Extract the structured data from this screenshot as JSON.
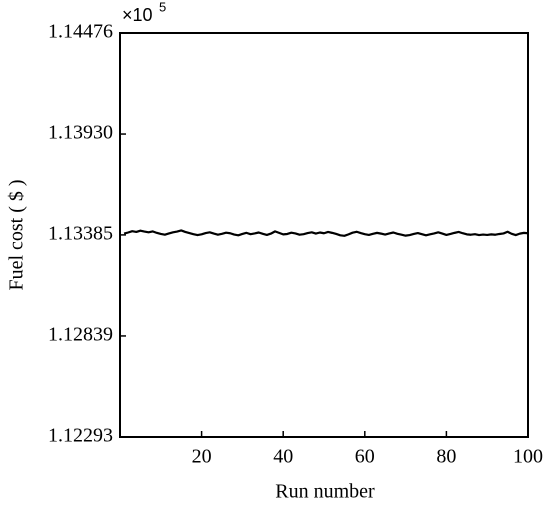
{
  "chart_data": {
    "type": "line",
    "x_label": "Run number",
    "y_label": "Fuel cost ( $ )",
    "multiplier_base": "×10",
    "multiplier_exponent": "5",
    "x": [
      1,
      2,
      3,
      4,
      5,
      6,
      7,
      8,
      9,
      10,
      11,
      12,
      13,
      14,
      15,
      16,
      17,
      18,
      19,
      20,
      21,
      22,
      23,
      24,
      25,
      26,
      27,
      28,
      29,
      30,
      31,
      32,
      33,
      34,
      35,
      36,
      37,
      38,
      39,
      40,
      41,
      42,
      43,
      44,
      45,
      46,
      47,
      48,
      49,
      50,
      51,
      52,
      53,
      54,
      55,
      56,
      57,
      58,
      59,
      60,
      61,
      62,
      63,
      64,
      65,
      66,
      67,
      68,
      69,
      70,
      71,
      72,
      73,
      74,
      75,
      76,
      77,
      78,
      79,
      80,
      81,
      82,
      83,
      84,
      85,
      86,
      87,
      88,
      89,
      90,
      91,
      92,
      93,
      94,
      95,
      96,
      97,
      98,
      99,
      100
    ],
    "series": [
      {
        "color": "#000000",
        "values": [
          1.13392,
          1.13398,
          1.13405,
          1.13401,
          1.13408,
          1.13403,
          1.13399,
          1.13404,
          1.13396,
          1.1339,
          1.13386,
          1.13393,
          1.13399,
          1.13403,
          1.13409,
          1.13401,
          1.13395,
          1.13389,
          1.13384,
          1.13388,
          1.13395,
          1.13399,
          1.13392,
          1.13386,
          1.13391,
          1.13397,
          1.13394,
          1.13387,
          1.13383,
          1.1339,
          1.13396,
          1.13389,
          1.13393,
          1.13398,
          1.13391,
          1.13385,
          1.13392,
          1.13404,
          1.13396,
          1.13388,
          1.1339,
          1.13397,
          1.13393,
          1.13386,
          1.13389,
          1.13395,
          1.13399,
          1.13392,
          1.13398,
          1.13394,
          1.13401,
          1.13396,
          1.1339,
          1.13383,
          1.1338,
          1.13388,
          1.13397,
          1.13402,
          1.13395,
          1.13389,
          1.13385,
          1.13391,
          1.13396,
          1.13392,
          1.13387,
          1.13393,
          1.13398,
          1.13391,
          1.13386,
          1.13381,
          1.13384,
          1.1339,
          1.13395,
          1.13389,
          1.13383,
          1.13388,
          1.13393,
          1.13399,
          1.13392,
          1.13385,
          1.1339,
          1.13396,
          1.13401,
          1.13394,
          1.13388,
          1.13386,
          1.13389,
          1.13384,
          1.13387,
          1.13385,
          1.13388,
          1.13386,
          1.1339,
          1.13393,
          1.13402,
          1.13391,
          1.13384,
          1.13392,
          1.13396,
          1.13394
        ]
      }
    ],
    "xlim": [
      0,
      100
    ],
    "xticks": [
      20,
      40,
      60,
      80,
      100
    ],
    "ylim": [
      1.12293,
      1.14476
    ],
    "yticks": [
      1.12293,
      1.12839,
      1.13385,
      {
        "value": 1.1393,
        "label": "1.13930"
      },
      1.14476
    ],
    "grid": false
  }
}
